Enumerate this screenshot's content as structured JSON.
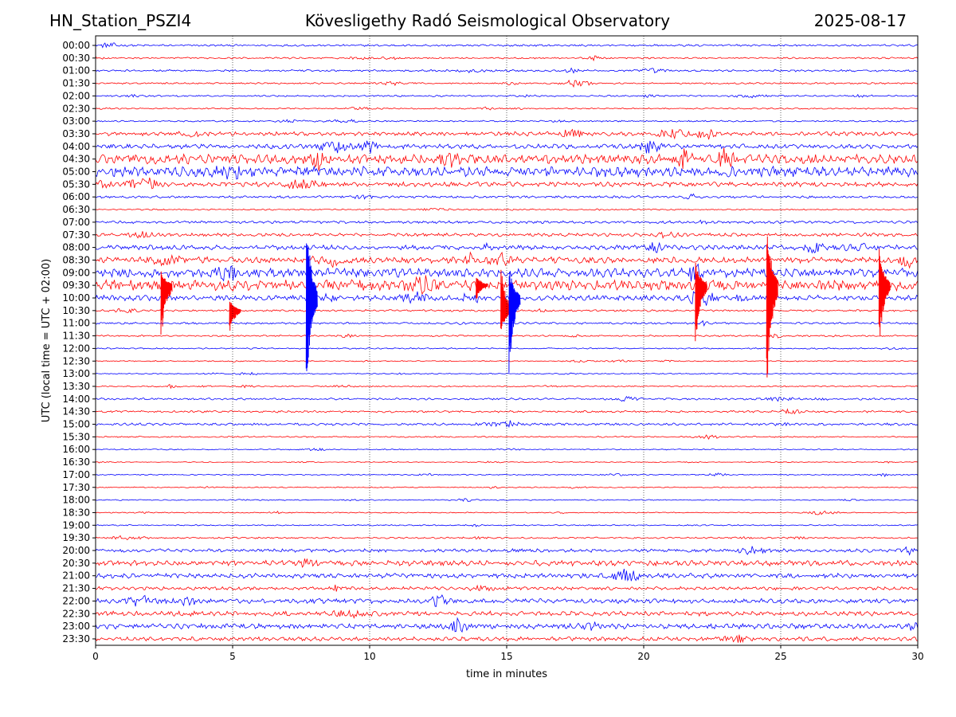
{
  "header": {
    "station": "HN_Station_PSZI4",
    "observatory": "Kövesligethy Radó Seismological Observatory",
    "date": "2025-08-17"
  },
  "chart_data": {
    "type": "line",
    "title": "Kövesligethy Radó Seismological Observatory",
    "xlabel": "time in minutes",
    "ylabel": "UTC (local time = UTC + 02:00)",
    "xlim": [
      0,
      30
    ],
    "x_ticks": [
      "0",
      "5",
      "10",
      "15",
      "20",
      "25",
      "30"
    ],
    "grid": "vertical dotted at 5-minute ticks",
    "trace_colors": [
      "#0000ff",
      "#ff0000"
    ],
    "rows": [
      {
        "label": "00:00",
        "amp": 1.5
      },
      {
        "label": "00:30",
        "amp": 1.2
      },
      {
        "label": "01:00",
        "amp": 1.5
      },
      {
        "label": "01:30",
        "amp": 1.2
      },
      {
        "label": "02:00",
        "amp": 1.2
      },
      {
        "label": "02:30",
        "amp": 1.0
      },
      {
        "label": "03:00",
        "amp": 1.2
      },
      {
        "label": "03:30",
        "amp": 3.0
      },
      {
        "label": "04:00",
        "amp": 3.5
      },
      {
        "label": "04:30",
        "amp": 7.0
      },
      {
        "label": "05:00",
        "amp": 7.5
      },
      {
        "label": "05:30",
        "amp": 3.5
      },
      {
        "label": "06:00",
        "amp": 1.8
      },
      {
        "label": "06:30",
        "amp": 1.0
      },
      {
        "label": "07:00",
        "amp": 2.0
      },
      {
        "label": "07:30",
        "amp": 2.5
      },
      {
        "label": "08:00",
        "amp": 3.5
      },
      {
        "label": "08:30",
        "amp": 4.5
      },
      {
        "label": "09:00",
        "amp": 6.5
      },
      {
        "label": "09:30",
        "amp": 8.0
      },
      {
        "label": "10:00",
        "amp": 4.0
      },
      {
        "label": "10:30",
        "amp": 1.5
      },
      {
        "label": "11:00",
        "amp": 1.5
      },
      {
        "label": "11:30",
        "amp": 1.2
      },
      {
        "label": "12:00",
        "amp": 1.0
      },
      {
        "label": "12:30",
        "amp": 0.8
      },
      {
        "label": "13:00",
        "amp": 0.8
      },
      {
        "label": "13:30",
        "amp": 1.0
      },
      {
        "label": "14:00",
        "amp": 1.5
      },
      {
        "label": "14:30",
        "amp": 1.5
      },
      {
        "label": "15:00",
        "amp": 1.8
      },
      {
        "label": "15:30",
        "amp": 1.0
      },
      {
        "label": "16:00",
        "amp": 0.8
      },
      {
        "label": "16:30",
        "amp": 0.6
      },
      {
        "label": "17:00",
        "amp": 0.8
      },
      {
        "label": "17:30",
        "amp": 0.8
      },
      {
        "label": "18:00",
        "amp": 0.8
      },
      {
        "label": "18:30",
        "amp": 0.8
      },
      {
        "label": "19:00",
        "amp": 0.9
      },
      {
        "label": "19:30",
        "amp": 1.2
      },
      {
        "label": "20:00",
        "amp": 2.5
      },
      {
        "label": "20:30",
        "amp": 4.0
      },
      {
        "label": "21:00",
        "amp": 3.5
      },
      {
        "label": "21:30",
        "amp": 2.5
      },
      {
        "label": "22:00",
        "amp": 3.5
      },
      {
        "label": "22:30",
        "amp": 3.5
      },
      {
        "label": "23:00",
        "amp": 3.8
      },
      {
        "label": "23:30",
        "amp": 3.0
      }
    ],
    "events": [
      {
        "row": "09:30",
        "minute": 2.5,
        "down": 75,
        "up": 20
      },
      {
        "row": "10:30",
        "minute": 5.0,
        "down": 30,
        "up": 15
      },
      {
        "row": "10:00",
        "minute": 7.8,
        "down": 125,
        "up": 110
      },
      {
        "row": "09:30",
        "minute": 14.0,
        "down": 20,
        "up": 15
      },
      {
        "row": "10:30",
        "minute": 14.9,
        "down": 30,
        "up": 60
      },
      {
        "row": "10:00",
        "minute": 15.2,
        "down": 105,
        "up": 40
      },
      {
        "row": "09:30",
        "minute": 22.0,
        "down": 85,
        "up": 30
      },
      {
        "row": "09:30",
        "minute": 24.6,
        "down": 140,
        "up": 80
      },
      {
        "row": "09:30",
        "minute": 28.7,
        "down": 80,
        "up": 50
      }
    ]
  }
}
